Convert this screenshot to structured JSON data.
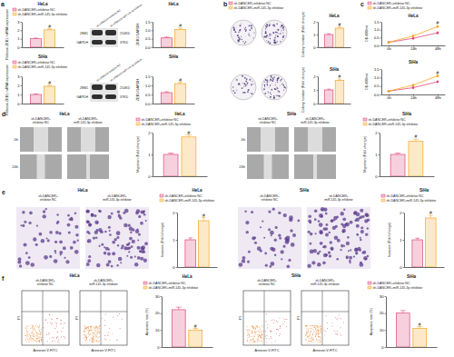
{
  "chart_data": [
    {
      "type": "bar",
      "title": "HeLa",
      "y_label": "Relative ZEB1 mRNA expression",
      "categories": [
        null
      ],
      "series": [
        {
          "name": "sh-DANCER+inhibitor NC",
          "color": "#e0457b",
          "values": [
            1.0
          ],
          "errors": [
            0.08
          ]
        },
        {
          "name": "sh-DANCER+miR-145-3p inhibitor",
          "color": "#f5a623",
          "values": [
            2.05
          ],
          "errors": [
            0.12
          ]
        }
      ],
      "ylim": [
        0,
        3
      ],
      "yticks": [
        0,
        1,
        2,
        3
      ],
      "legend": "top",
      "annotations": [
        {
          "text": "#",
          "series": 1,
          "index": 0
        }
      ]
    },
    {
      "type": "bar",
      "title": "HeLa",
      "y_label": "ZEB1/GAPDH",
      "categories": [
        null
      ],
      "series": [
        {
          "name": "sh-DANCER+inhibitor NC",
          "color": "#e0457b",
          "values": [
            0.55
          ],
          "errors": [
            0.05
          ]
        },
        {
          "name": "sh-DANCER+miR-145-3p inhibitor",
          "color": "#f5a623",
          "values": [
            1.05
          ],
          "errors": [
            0.08
          ]
        }
      ],
      "ylim": [
        0,
        1.5
      ],
      "yticks": [
        {
          "value": 0,
          "label": "0.0"
        },
        0.5,
        {
          "value": 1,
          "label": "1.0"
        },
        1.5
      ],
      "annotations": [
        {
          "text": "#",
          "series": 1,
          "index": 0
        }
      ]
    },
    {
      "type": "bar",
      "title": "SiHa",
      "y_label": "Relative ZEB1 mRNA expression",
      "categories": [
        null
      ],
      "series": [
        {
          "name": "sh-DANCER+inhibitor NC",
          "color": "#e0457b",
          "values": [
            1.0
          ],
          "errors": [
            0.07
          ]
        },
        {
          "name": "sh-DANCER+miR-145-3p inhibitor",
          "color": "#f5a623",
          "values": [
            1.9
          ],
          "errors": [
            0.12
          ]
        }
      ],
      "ylim": [
        0,
        3
      ],
      "yticks": [
        0,
        1,
        2,
        3
      ],
      "legend": "top",
      "annotations": [
        {
          "text": "#",
          "series": 1,
          "index": 0
        }
      ]
    },
    {
      "type": "bar",
      "title": "SiHa",
      "y_label": "ZEB1/GAPDH",
      "categories": [
        null
      ],
      "series": [
        {
          "name": "sh-DANCER+inhibitor NC",
          "color": "#e0457b",
          "values": [
            0.6
          ],
          "errors": [
            0.05
          ]
        },
        {
          "name": "sh-DANCER+miR-145-3p inhibitor",
          "color": "#f5a623",
          "values": [
            1.1
          ],
          "errors": [
            0.08
          ]
        }
      ],
      "ylim": [
        0,
        1.5
      ],
      "yticks": [
        {
          "value": 0,
          "label": "0.0"
        },
        0.5,
        {
          "value": 1,
          "label": "1.0"
        },
        1.5
      ],
      "annotations": [
        {
          "text": "#",
          "series": 1,
          "index": 0
        }
      ]
    },
    {
      "type": "bar",
      "title": "HeLa",
      "y_label": "Colony number (Fold change)",
      "categories": [
        null
      ],
      "series": [
        {
          "name": "sh-DANCER+inhibitor NC",
          "color": "#e0457b",
          "values": [
            1.0
          ],
          "errors": [
            0.07
          ]
        },
        {
          "name": "sh-DANCER+miR-145-3p inhibitor",
          "color": "#f5a623",
          "values": [
            1.5
          ],
          "errors": [
            0.1
          ]
        }
      ],
      "ylim": [
        0,
        2
      ],
      "yticks": [
        0,
        1,
        2
      ],
      "legend": "top",
      "annotations": [
        {
          "text": "#",
          "series": 1,
          "index": 0
        }
      ]
    },
    {
      "type": "bar",
      "title": "SiHa",
      "y_label": "Colony number (Fold change)",
      "categories": [
        null
      ],
      "series": [
        {
          "name": "sh-DANCER+inhibitor NC",
          "color": "#e0457b",
          "values": [
            1.0
          ],
          "errors": [
            0.06
          ]
        },
        {
          "name": "sh-DANCER+miR-145-3p inhibitor",
          "color": "#f5a623",
          "values": [
            1.7
          ],
          "errors": [
            0.1
          ]
        }
      ],
      "ylim": [
        0,
        2
      ],
      "yticks": [
        0,
        1,
        2
      ],
      "annotations": [
        {
          "text": "#",
          "series": 1,
          "index": 0
        }
      ]
    },
    {
      "type": "line",
      "title": "HeLa",
      "y_label": "OD 490nm",
      "categories": [
        "0h",
        "24h",
        "48h"
      ],
      "marker": "circle",
      "series": [
        {
          "name": "sh-DANCER+inhibitor NC",
          "color": "#e0457b",
          "values": [
            0.2,
            0.45,
            0.8
          ],
          "errors": [
            0.02,
            0.04,
            0.05
          ]
        },
        {
          "name": "sh-DANCER+miR-145-3p inhibitor",
          "color": "#f5a623",
          "values": [
            0.2,
            0.6,
            1.2
          ],
          "errors": [
            0.02,
            0.05,
            0.06
          ]
        }
      ],
      "ylim": [
        0,
        1.5
      ],
      "yticks": [
        {
          "value": 0,
          "label": "0.0"
        },
        0.5,
        {
          "value": 1,
          "label": "1.0"
        },
        1.5
      ],
      "legend": "top",
      "annotations": [
        {
          "text": "#",
          "series": 1,
          "index": 2
        }
      ]
    },
    {
      "type": "line",
      "title": "SiHa",
      "y_label": "OD 490nm",
      "categories": [
        "0h",
        "24h",
        "48h"
      ],
      "marker": "circle",
      "series": [
        {
          "name": "sh-DANCER+inhibitor NC",
          "color": "#e0457b",
          "values": [
            0.2,
            0.4,
            0.75
          ],
          "errors": [
            0.02,
            0.04,
            0.05
          ]
        },
        {
          "name": "sh-DANCER+miR-145-3p inhibitor",
          "color": "#f5a623",
          "values": [
            0.2,
            0.55,
            1.1
          ],
          "errors": [
            0.02,
            0.05,
            0.06
          ]
        }
      ],
      "ylim": [
        0,
        1.5
      ],
      "yticks": [
        {
          "value": 0,
          "label": "0.0"
        },
        0.5,
        {
          "value": 1,
          "label": "1.0"
        },
        1.5
      ],
      "annotations": [
        {
          "text": "#",
          "series": 1,
          "index": 2
        }
      ]
    },
    {
      "type": "bar",
      "title": "HeLa",
      "y_label": "Migration (Fold change)",
      "categories": [
        null
      ],
      "series": [
        {
          "name": "sh-DANCER+inhibitor NC",
          "color": "#e0457b",
          "values": [
            1.0
          ],
          "errors": [
            0.06
          ]
        },
        {
          "name": "sh-DANCER+miR-145-3p inhibitor",
          "color": "#f5a623",
          "values": [
            1.8
          ],
          "errors": [
            0.1
          ]
        }
      ],
      "ylim": [
        0,
        2
      ],
      "yticks": [
        0,
        1,
        2
      ],
      "legend": "top",
      "annotations": [
        {
          "text": "#",
          "series": 1,
          "index": 0
        }
      ]
    },
    {
      "type": "bar",
      "title": "SiHa",
      "y_label": "Migration (Fold change)",
      "categories": [
        null
      ],
      "series": [
        {
          "name": "sh-DANCER+inhibitor NC",
          "color": "#e0457b",
          "values": [
            1.0
          ],
          "errors": [
            0.06
          ]
        },
        {
          "name": "sh-DANCER+miR-145-3p inhibitor",
          "color": "#f5a623",
          "values": [
            1.6
          ],
          "errors": [
            0.1
          ]
        }
      ],
      "ylim": [
        0,
        2
      ],
      "yticks": [
        0,
        1,
        2
      ],
      "legend": "top",
      "annotations": [
        {
          "text": "#",
          "series": 1,
          "index": 0
        }
      ]
    },
    {
      "type": "bar",
      "title": "HeLa",
      "y_label": "Invasion (Fold change)",
      "categories": [
        null
      ],
      "series": [
        {
          "name": "sh-DANCER+inhibitor NC",
          "color": "#e0457b",
          "values": [
            1.0
          ],
          "errors": [
            0.07
          ]
        },
        {
          "name": "sh-DANCER+miR-145-3p inhibitor",
          "color": "#f5a623",
          "values": [
            1.7
          ],
          "errors": [
            0.12
          ]
        }
      ],
      "ylim": [
        0,
        2
      ],
      "yticks": [
        0,
        1,
        2
      ],
      "legend": "top",
      "annotations": [
        {
          "text": "#",
          "series": 1,
          "index": 0
        }
      ]
    },
    {
      "type": "bar",
      "title": "SiHa",
      "y_label": "Invasion (Fold change)",
      "categories": [
        null
      ],
      "series": [
        {
          "name": "sh-DANCER+inhibitor NC",
          "color": "#e0457b",
          "values": [
            1.0
          ],
          "errors": [
            0.06
          ]
        },
        {
          "name": "sh-DANCER+miR-145-3p inhibitor",
          "color": "#f5a623",
          "values": [
            1.8
          ],
          "errors": [
            0.1
          ]
        }
      ],
      "ylim": [
        0,
        2
      ],
      "yticks": [
        0,
        1,
        2
      ],
      "legend": "top",
      "annotations": [
        {
          "text": "#",
          "series": 1,
          "index": 0
        }
      ]
    },
    {
      "type": "bar",
      "title": "HeLa",
      "y_label": "Apoptotic rate (%)",
      "categories": [
        null
      ],
      "series": [
        {
          "name": "sh-DANCER+inhibitor NC",
          "color": "#e0457b",
          "values": [
            22
          ],
          "errors": [
            1.5
          ]
        },
        {
          "name": "sh-DANCER+miR-145-3p inhibitor",
          "color": "#f5a623",
          "values": [
            10
          ],
          "errors": [
            1.0
          ]
        }
      ],
      "ylim": [
        0,
        30
      ],
      "yticks": [
        0,
        10,
        20,
        30
      ],
      "legend": "top",
      "annotations": [
        {
          "text": "#",
          "series": 1,
          "index": 0
        }
      ]
    },
    {
      "type": "bar",
      "title": "SiHa",
      "y_label": "Apoptotic rate (%)",
      "categories": [
        null
      ],
      "series": [
        {
          "name": "sh-DANCER+inhibitor NC",
          "color": "#e0457b",
          "values": [
            20
          ],
          "errors": [
            1.5
          ]
        },
        {
          "name": "sh-DANCER+miR-145-3p inhibitor",
          "color": "#f5a623",
          "values": [
            11
          ],
          "errors": [
            1.0
          ]
        }
      ],
      "ylim": [
        0,
        30
      ],
      "yticks": [
        0,
        10,
        20,
        30
      ],
      "legend": "top",
      "annotations": [
        {
          "text": "#",
          "series": 1,
          "index": 0
        }
      ]
    }
  ],
  "figure": {
    "panel_labels": [
      "a",
      "b",
      "c",
      "d",
      "e",
      "f"
    ],
    "lanes": [
      "sh-DANCER+inhibitor NC",
      "sh-DANCER+miR-145-3p inhibitor"
    ],
    "blots": [
      {
        "rows": [
          {
            "protein": "ZEB1",
            "size": "210KD"
          },
          {
            "protein": "GAPDH",
            "size": "37KD"
          }
        ]
      },
      {
        "rows": [
          {
            "protein": "ZEB1",
            "size": "210KD"
          },
          {
            "protein": "GAPDH",
            "size": "37KD"
          }
        ]
      }
    ],
    "migration": [
      {
        "title": "HeLa",
        "times": [
          "0h",
          "24h"
        ]
      },
      {
        "title": "SiHa",
        "times": [
          "0h",
          "24h"
        ]
      }
    ],
    "invasion": [
      {
        "title": "HeLa"
      },
      {
        "title": "SiHa"
      }
    ],
    "flow": [
      {
        "title": "HeLa",
        "x_label": "Annexin V-FITC",
        "y_label": "PI"
      },
      {
        "title": "SiHa",
        "x_label": "Annexin V-FITC",
        "y_label": "PI"
      }
    ]
  }
}
